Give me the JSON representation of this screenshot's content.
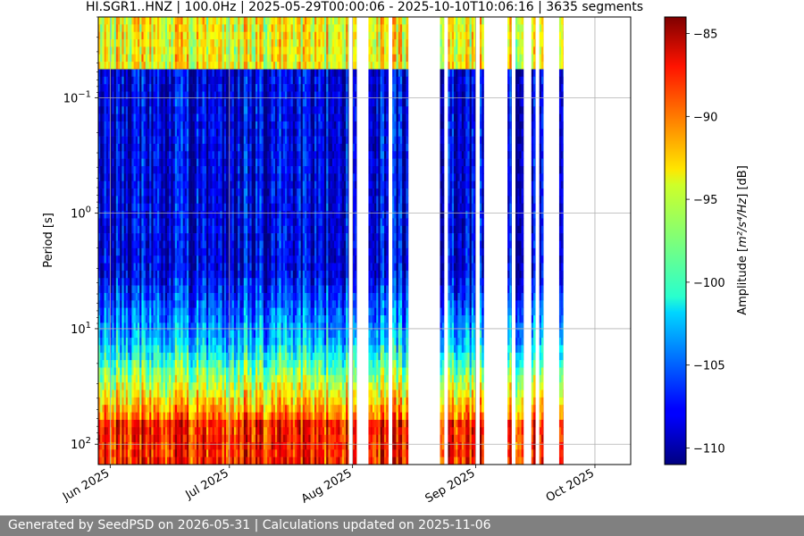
{
  "chart_data": {
    "type": "heatmap",
    "title": "HI.SGR1..HNZ | 100.0Hz | 2025-05-29T00:00:06 - 2025-10-10T10:06:16 | 3635 segments",
    "ylabel": "Period [s]",
    "xlabel": "",
    "y_scale": "log",
    "y_inverted": true,
    "ylim": [
      0.02,
      150
    ],
    "xlim": [
      "2025-05-29",
      "2025-10-10"
    ],
    "x_ticks": [
      {
        "date": "2025-06-01",
        "label": "Jun 2025"
      },
      {
        "date": "2025-07-01",
        "label": "Jul 2025"
      },
      {
        "date": "2025-08-01",
        "label": "Aug 2025"
      },
      {
        "date": "2025-09-01",
        "label": "Sep 2025"
      },
      {
        "date": "2025-10-01",
        "label": "Oct 2025"
      }
    ],
    "y_ticks": [
      {
        "value": 0.1,
        "base": "10",
        "exp": "−1"
      },
      {
        "value": 1,
        "base": "10",
        "exp": "0"
      },
      {
        "value": 10,
        "base": "10",
        "exp": "1"
      },
      {
        "value": 100,
        "base": "10",
        "exp": "2"
      }
    ],
    "grid": true,
    "colormap": "jet",
    "colorbar": {
      "label_main": "Amplitude [",
      "label_math": "m²/s⁴/Hz",
      "label_end": "] [dB]",
      "range": [
        -111,
        -84
      ],
      "ticks": [
        {
          "value": -85,
          "label": "−85"
        },
        {
          "value": -90,
          "label": "−90"
        },
        {
          "value": -95,
          "label": "−95"
        },
        {
          "value": -100,
          "label": "−100"
        },
        {
          "value": -105,
          "label": "−105"
        },
        {
          "value": -110,
          "label": "−110"
        }
      ]
    },
    "data_intervals": [
      [
        "2025-05-29",
        "2025-07-31"
      ],
      [
        "2025-08-01",
        "2025-08-02"
      ],
      [
        "2025-08-05",
        "2025-08-10"
      ],
      [
        "2025-08-11",
        "2025-08-15"
      ],
      [
        "2025-08-23",
        "2025-08-24"
      ],
      [
        "2025-08-25",
        "2025-09-01"
      ],
      [
        "2025-09-02",
        "2025-09-03"
      ],
      [
        "2025-09-09",
        "2025-09-10"
      ],
      [
        "2025-09-11",
        "2025-09-13"
      ],
      [
        "2025-09-15",
        "2025-09-16"
      ],
      [
        "2025-09-17",
        "2025-09-18"
      ],
      [
        "2025-09-22",
        "2025-09-23"
      ]
    ]
  },
  "footer": {
    "text": "Generated by SeedPSD on 2026-05-31 | Calculations updated on 2025-11-06"
  }
}
